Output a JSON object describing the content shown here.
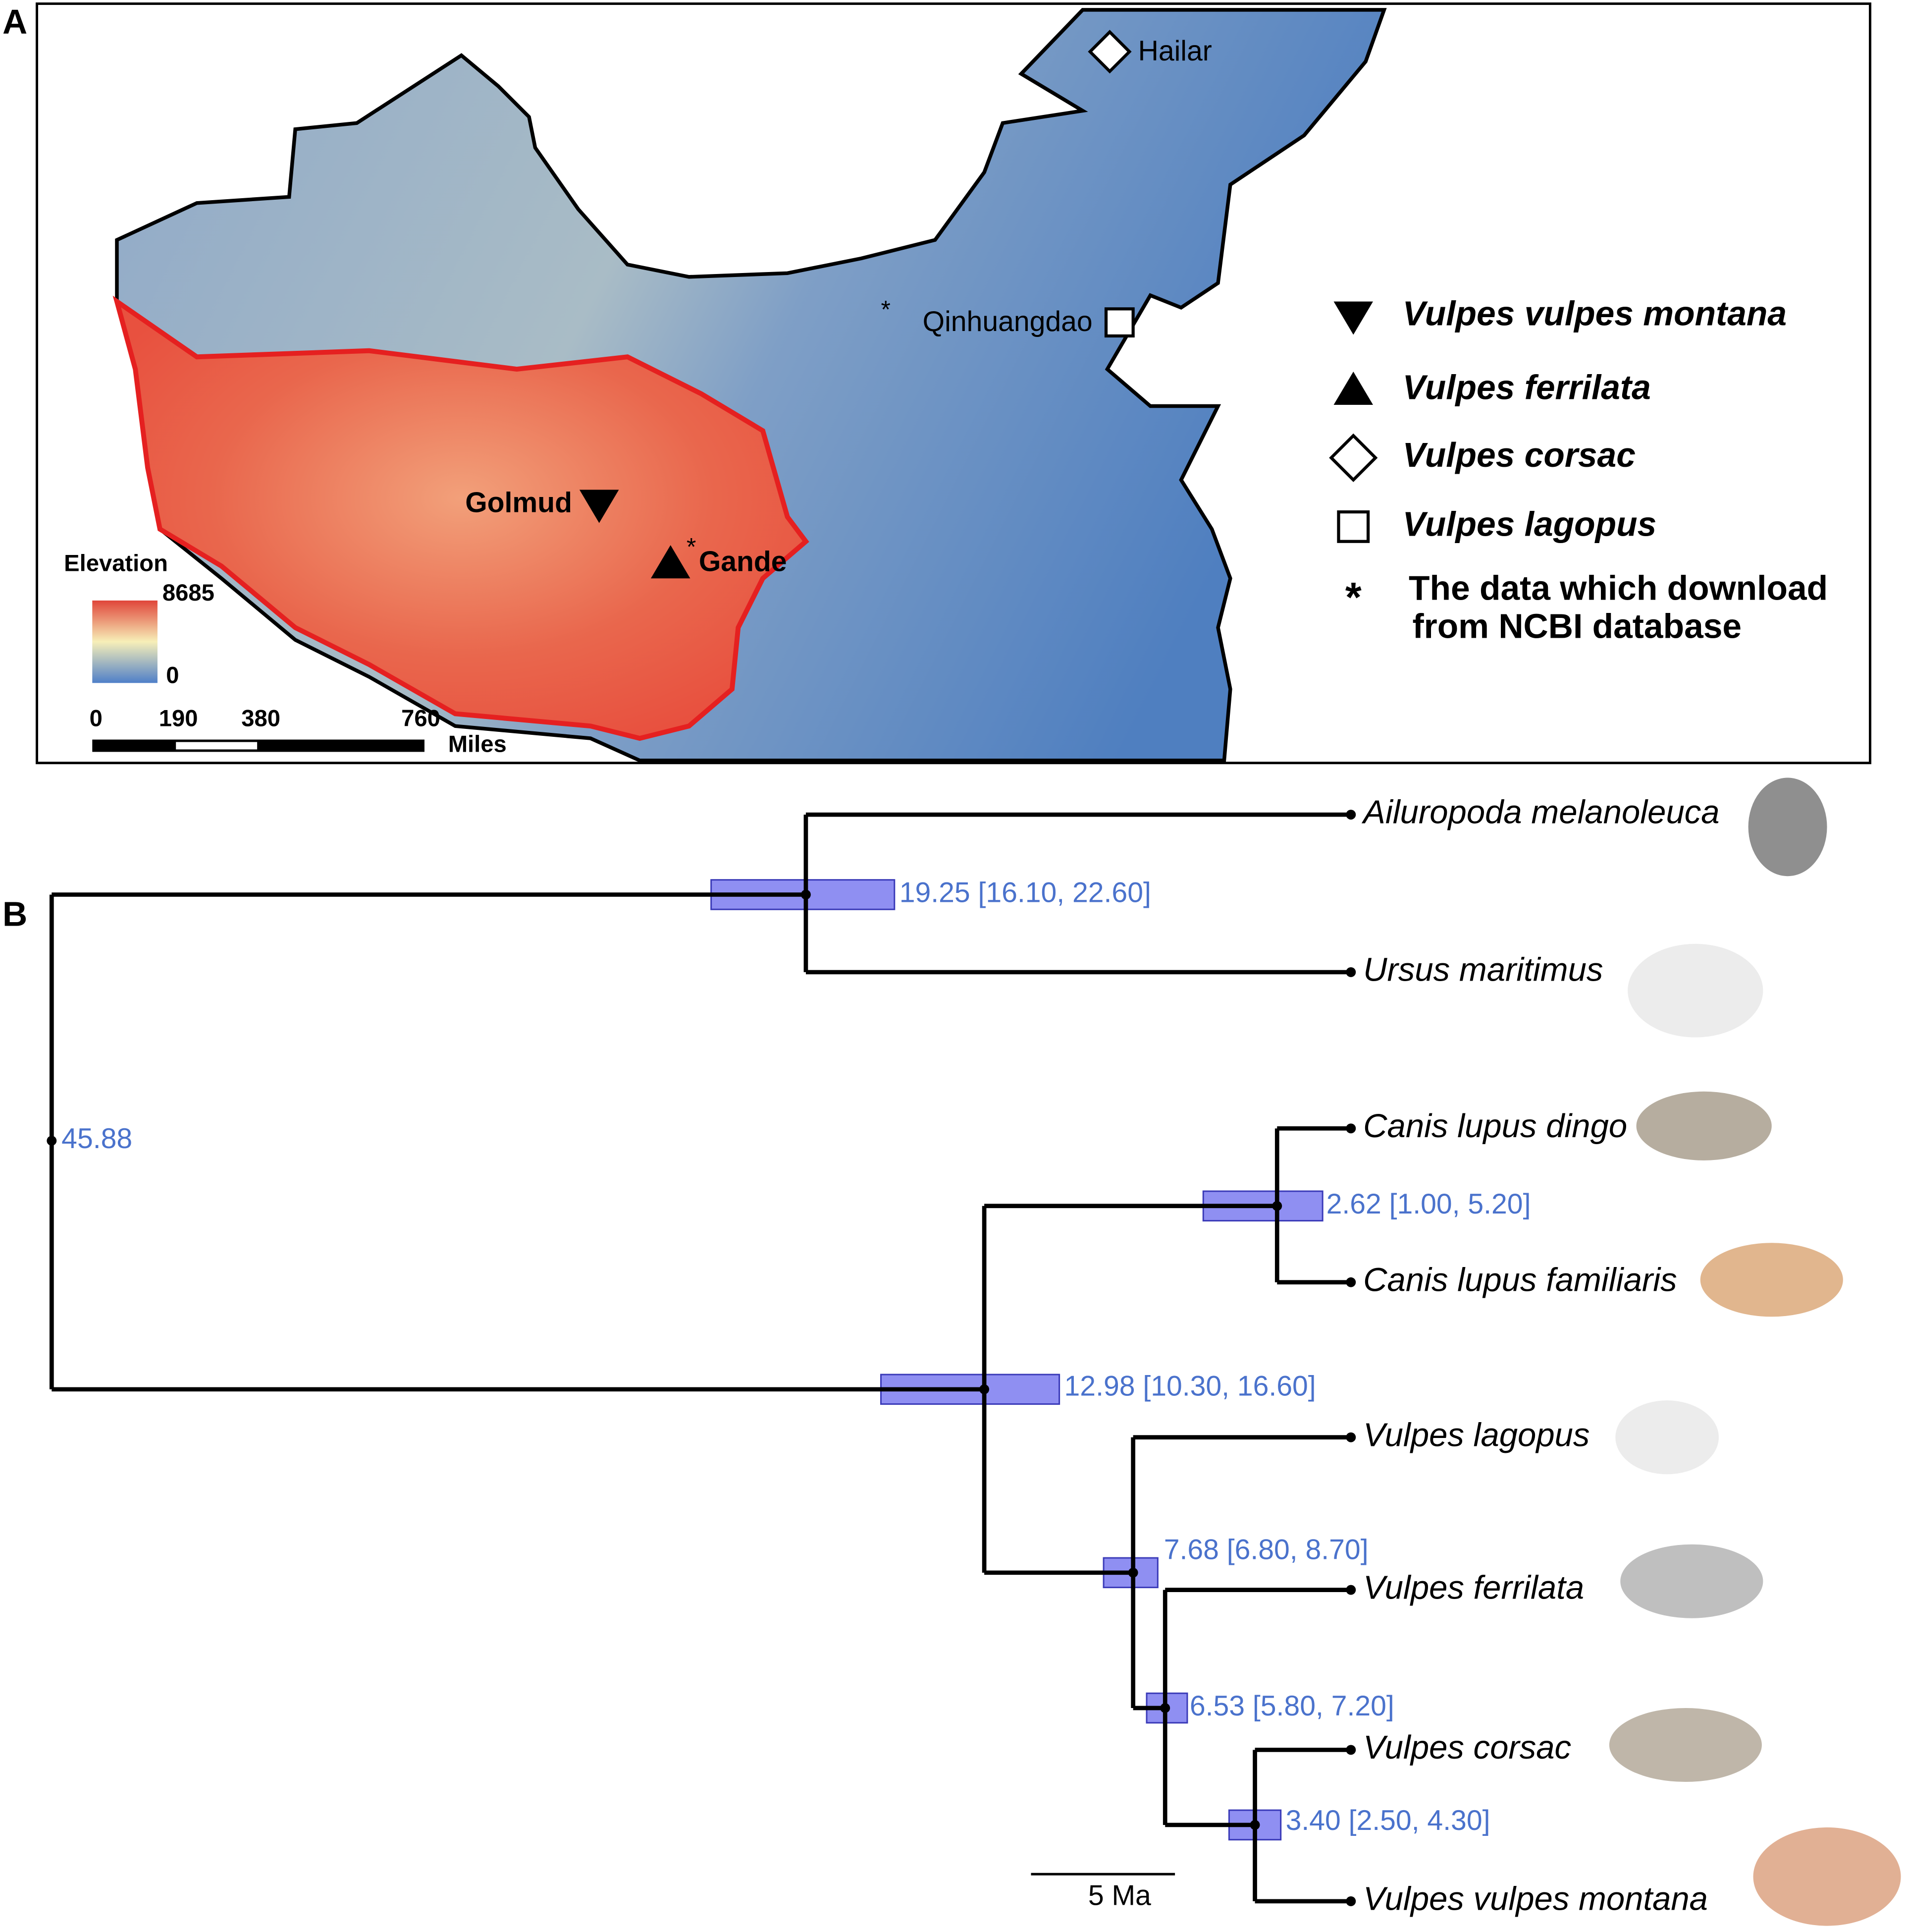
{
  "panel_a": {
    "label": "A",
    "sites": [
      {
        "label": "Hailar"
      },
      {
        "asterisk": "*",
        "label": "Qinhuangdao"
      },
      {
        "label": "Golmud"
      },
      {
        "asterisk": "*",
        "label": "Gande"
      }
    ],
    "legend": [
      "Vulpes vulpes montana",
      "Vulpes ferrilata",
      "Vulpes corsac",
      "Vulpes lagopus"
    ],
    "note": {
      "asterisk": "*",
      "lines": [
        "The data which download",
        "from NCBI database"
      ]
    },
    "elevation": {
      "title": "Elevation",
      "max": "8685",
      "min": "0"
    },
    "scale": {
      "ticks": [
        "0",
        "190",
        "380",
        "760"
      ],
      "unit": "Miles"
    }
  },
  "panel_b": {
    "label": "B",
    "root": "45.88",
    "nodes": [
      "19.25 [16.10, 22.60]",
      "2.62 [1.00, 5.20]",
      "12.98 [10.30, 16.60]",
      "7.68 [6.80, 8.70]",
      "6.53 [5.80, 7.20]",
      "3.40 [2.50, 4.30]"
    ],
    "tips": [
      "Ailuropoda melanoleuca",
      "Ursus maritimus",
      "Canis lupus dingo",
      "Canis lupus familiaris",
      "Vulpes lagopus",
      "Vulpes ferrilata",
      "Vulpes corsac",
      "Vulpes vulpes montana"
    ],
    "scale": "5 Ma"
  }
}
